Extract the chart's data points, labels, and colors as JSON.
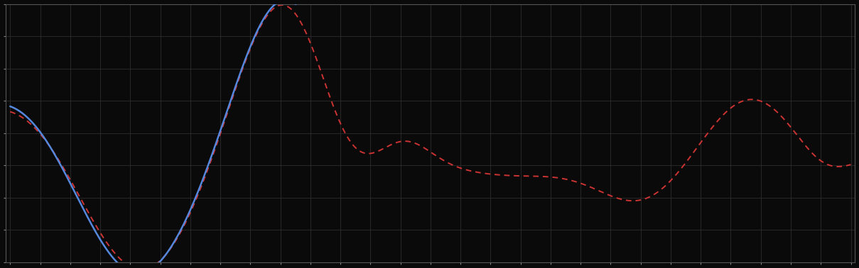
{
  "background_color": "#0a0a0a",
  "plot_bg_color": "#0a0a0a",
  "grid_color": "#2d2d2d",
  "blue_line_color": "#5588dd",
  "red_line_color": "#cc3333",
  "figsize": [
    12.09,
    3.78
  ],
  "dpi": 100,
  "spine_color": "#555555",
  "tick_color": "#888888"
}
